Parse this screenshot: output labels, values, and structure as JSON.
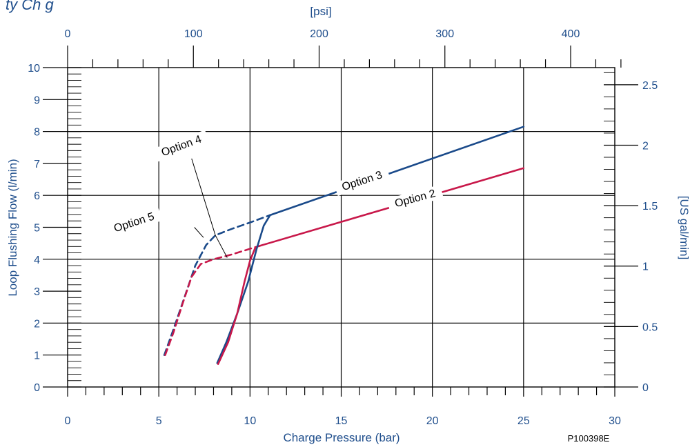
{
  "header_fragment": "ty Ch  g",
  "figure_code": "P100398E",
  "chart_data": {
    "type": "line",
    "xlabel": "Charge Pressure (bar)",
    "ylabel": "Loop Flushing Flow (l/min)",
    "x_top_label": "[psi]",
    "y_right_label": "[US gal/min]",
    "xlim": [
      0,
      30
    ],
    "ylim": [
      0,
      10
    ],
    "x_ticks": [
      0,
      5,
      10,
      15,
      20,
      25,
      30
    ],
    "y_ticks": [
      0,
      1,
      2,
      3,
      4,
      5,
      6,
      7,
      8,
      9,
      10
    ],
    "x_top_ticks": [
      0,
      100,
      200,
      300,
      400
    ],
    "y_right_ticks": [
      0,
      0.5,
      1,
      1.5,
      2,
      2.5
    ],
    "y_right_tick_labels": [
      "0",
      "0.5",
      "1",
      "1.5",
      "2",
      "2.5"
    ],
    "grid": true,
    "colors": {
      "blue": "#1a4a8a",
      "red": "#c8184a",
      "text": "#1f4e8c"
    },
    "series": [
      {
        "name": "Option 3",
        "color": "#1a4a8a",
        "dashed": false,
        "x": [
          11.1,
          25
        ],
        "y": [
          5.38,
          8.15
        ]
      },
      {
        "name": "Option 2",
        "color": "#c8184a",
        "dashed": false,
        "x": [
          10.3,
          25
        ],
        "y": [
          4.38,
          6.85
        ]
      },
      {
        "name": "",
        "color": "#1a4a8a",
        "dashed": false,
        "x": [
          8.2,
          8.7,
          9.3,
          9.9,
          10.35,
          10.75,
          11.1
        ],
        "y": [
          0.75,
          1.4,
          2.3,
          3.3,
          4.3,
          5.05,
          5.38
        ]
      },
      {
        "name": "",
        "color": "#c8184a",
        "dashed": false,
        "x": [
          8.25,
          8.8,
          9.3,
          9.7,
          10.0,
          10.3
        ],
        "y": [
          0.72,
          1.4,
          2.3,
          3.3,
          3.95,
          4.38
        ]
      },
      {
        "name": "Option 5",
        "color": "#1a4a8a",
        "dashed": true,
        "x": [
          5.3,
          5.8,
          6.4,
          7.0,
          7.6,
          8.1,
          9.0,
          10.0,
          11.1
        ],
        "y": [
          1.0,
          1.8,
          2.8,
          3.8,
          4.45,
          4.75,
          4.95,
          5.15,
          5.38
        ]
      },
      {
        "name": "Option 4",
        "color": "#c8184a",
        "dashed": true,
        "x": [
          5.35,
          5.8,
          6.3,
          6.8,
          7.3,
          8.0,
          9.0,
          10.3
        ],
        "y": [
          1.0,
          1.7,
          2.6,
          3.45,
          3.85,
          4.0,
          4.15,
          4.38
        ]
      }
    ],
    "annotations": [
      {
        "text": "Option 3",
        "at_x": 16.2,
        "at_y": 6.35,
        "rotate": -18
      },
      {
        "text": "Option 2",
        "at_x": 19.1,
        "at_y": 5.8,
        "rotate": -15
      },
      {
        "text": "Option 4",
        "at_x": 6.3,
        "at_y": 7.45,
        "rotate": -20
      },
      {
        "text": "Option 5",
        "at_x": 3.7,
        "at_y": 5.05,
        "rotate": -18
      }
    ]
  }
}
